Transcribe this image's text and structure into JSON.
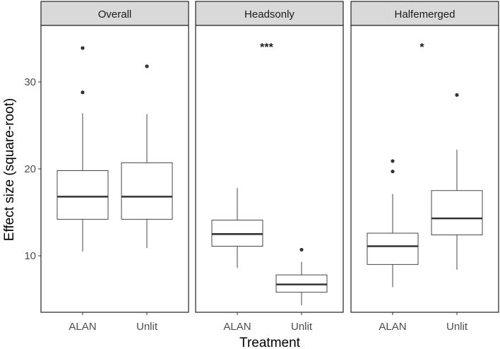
{
  "chart_data": {
    "type": "boxplot",
    "xlabel": "Treatment",
    "ylabel": "Effect size (square-root)",
    "ylim": [
      3.5,
      36.5
    ],
    "yticks": [
      10,
      20,
      30
    ],
    "categories": [
      "ALAN",
      "Unlit"
    ],
    "grid": false,
    "facets": [
      {
        "title": "Overall",
        "significance": "",
        "boxes": [
          {
            "category": "ALAN",
            "min": 10.5,
            "q1": 14.2,
            "median": 16.8,
            "q3": 19.8,
            "max": 26.4,
            "outliers": [
              28.8,
              33.9
            ]
          },
          {
            "category": "Unlit",
            "min": 10.9,
            "q1": 14.2,
            "median": 16.8,
            "q3": 20.7,
            "max": 26.3,
            "outliers": [
              31.8
            ]
          }
        ]
      },
      {
        "title": "Headsonly",
        "significance": "***",
        "boxes": [
          {
            "category": "ALAN",
            "min": 8.6,
            "q1": 11.1,
            "median": 12.5,
            "q3": 14.1,
            "max": 17.8,
            "outliers": []
          },
          {
            "category": "Unlit",
            "min": 4.3,
            "q1": 5.8,
            "median": 6.7,
            "q3": 7.8,
            "max": 9.3,
            "outliers": [
              10.7
            ]
          }
        ]
      },
      {
        "title": "Halfemerged",
        "significance": "*",
        "boxes": [
          {
            "category": "ALAN",
            "min": 6.4,
            "q1": 9.0,
            "median": 11.1,
            "q3": 12.6,
            "max": 17.1,
            "outliers": [
              19.7,
              20.9
            ]
          },
          {
            "category": "Unlit",
            "min": 8.4,
            "q1": 12.4,
            "median": 14.3,
            "q3": 17.5,
            "max": 22.2,
            "outliers": [
              28.5
            ]
          }
        ]
      }
    ]
  }
}
